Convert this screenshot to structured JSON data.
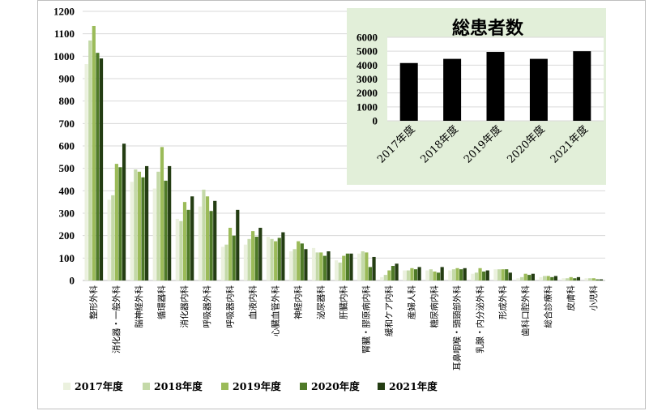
{
  "chart_data": [
    {
      "type": "bar",
      "title": "",
      "xlabel": "",
      "ylabel": "",
      "ylim": [
        0,
        1200
      ],
      "yticks": [
        0,
        100,
        200,
        300,
        400,
        500,
        600,
        700,
        800,
        900,
        1000,
        1100,
        1200
      ],
      "grid": true,
      "legend_position": "bottom",
      "categories": [
        "整形外科",
        "消化器・一般外科",
        "脳神経外科",
        "循環器科",
        "消化器内科",
        "呼吸器外科",
        "呼吸器内科",
        "血液内科",
        "心臓血管外科",
        "神経内科",
        "泌尿器科",
        "肝臓内科",
        "腎臓・膠原病内科",
        "緩和ケア内科",
        "産婦人科",
        "糖尿病内科",
        "耳鼻咽喉・頭頸部外科",
        "乳腺・内分泌外科",
        "形成外科",
        "歯科口腔外科",
        "総合診療科",
        "皮膚科",
        "小児科"
      ],
      "series": [
        {
          "name": "2017年度",
          "color": "#ebf1de",
          "values": [
            965,
            360,
            440,
            410,
            275,
            330,
            150,
            160,
            195,
            130,
            145,
            90,
            120,
            15,
            45,
            45,
            45,
            30,
            50,
            10,
            15,
            10,
            10
          ]
        },
        {
          "name": "2018年度",
          "color": "#c4d9a8",
          "values": [
            1070,
            380,
            495,
            485,
            265,
            405,
            160,
            185,
            185,
            140,
            125,
            80,
            130,
            25,
            45,
            50,
            50,
            35,
            50,
            15,
            20,
            10,
            10
          ]
        },
        {
          "name": "2019年度",
          "color": "#9bbb59",
          "values": [
            1135,
            520,
            485,
            595,
            350,
            375,
            235,
            220,
            175,
            175,
            125,
            110,
            125,
            45,
            55,
            40,
            55,
            55,
            50,
            30,
            20,
            15,
            10
          ]
        },
        {
          "name": "2020年度",
          "color": "#4f7a28",
          "values": [
            1015,
            505,
            460,
            445,
            315,
            310,
            200,
            195,
            190,
            165,
            110,
            120,
            60,
            65,
            50,
            35,
            50,
            40,
            50,
            25,
            15,
            10,
            5
          ]
        },
        {
          "name": "2021年度",
          "color": "#243d13",
          "values": [
            990,
            610,
            510,
            510,
            375,
            355,
            315,
            235,
            215,
            140,
            130,
            120,
            105,
            75,
            60,
            60,
            55,
            45,
            35,
            30,
            20,
            15,
            5
          ]
        }
      ]
    },
    {
      "type": "bar",
      "title": "総患者数",
      "xlabel": "",
      "ylabel": "",
      "ylim": [
        0,
        6000
      ],
      "yticks": [
        0,
        1000,
        2000,
        3000,
        4000,
        5000,
        6000
      ],
      "grid": true,
      "background": "#e2efd9",
      "bar_color": "#000000",
      "categories": [
        "2017年度",
        "2018年度",
        "2019年度",
        "2020年度",
        "2021年度"
      ],
      "values": [
        4150,
        4450,
        4950,
        4450,
        5000
      ]
    }
  ]
}
